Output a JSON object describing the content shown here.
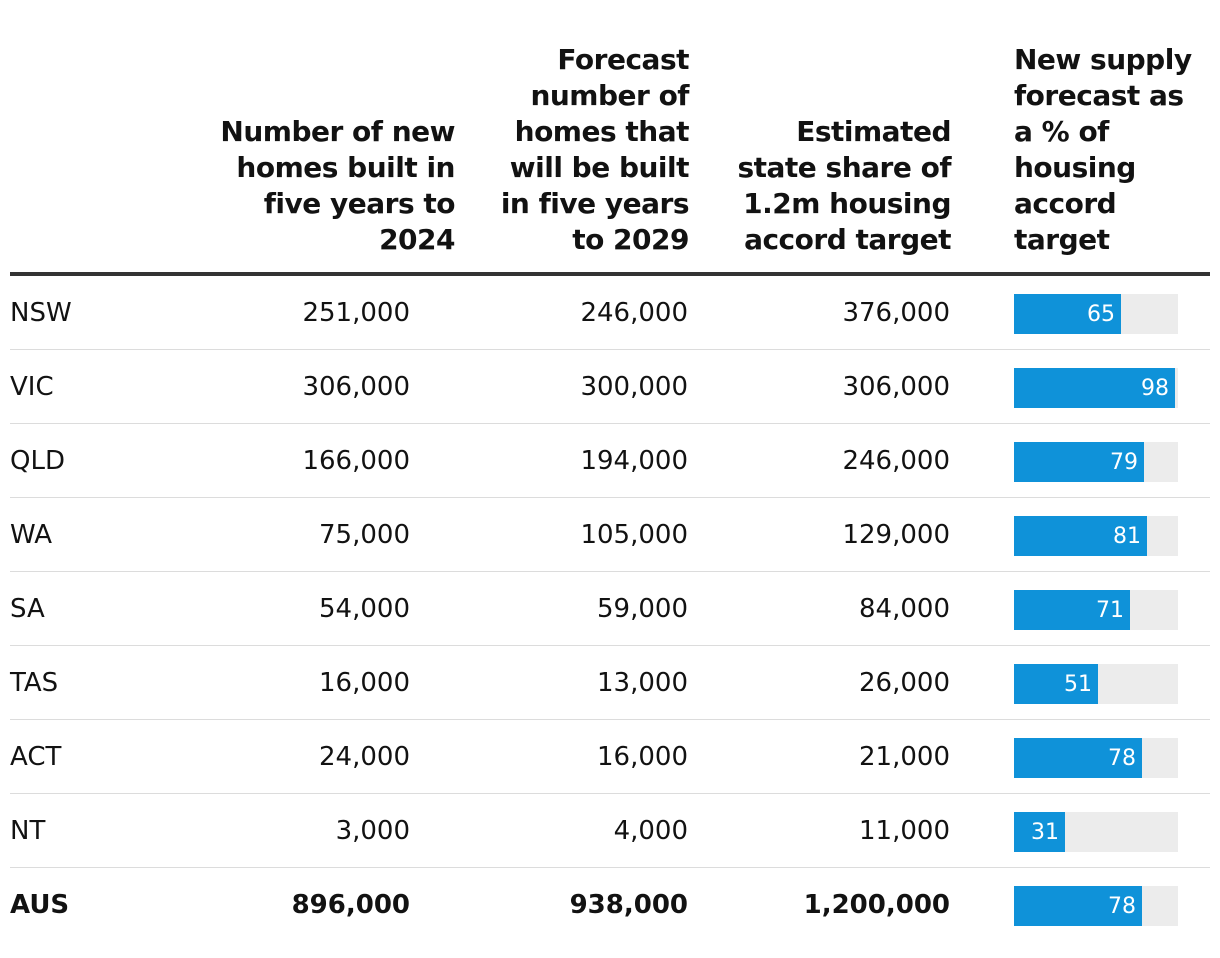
{
  "headers": {
    "col1": "Number of new\nhomes built in\nfive years to\n2024",
    "col2": "Forecast\nnumber of\nhomes that\nwill be built\nin five years\nto 2029",
    "col3": "Estimated\nstate share of\n1.2m housing\naccord target",
    "col4": "New supply\nforecast as\na % of\nhousing\naccord\ntarget"
  },
  "rows": [
    {
      "region": "NSW",
      "built_2024": "251,000",
      "forecast_2029": "246,000",
      "target_share": "376,000",
      "pct_label": "65"
    },
    {
      "region": "VIC",
      "built_2024": "306,000",
      "forecast_2029": "300,000",
      "target_share": "306,000",
      "pct_label": "98"
    },
    {
      "region": "QLD",
      "built_2024": "166,000",
      "forecast_2029": "194,000",
      "target_share": "246,000",
      "pct_label": "79"
    },
    {
      "region": "WA",
      "built_2024": "75,000",
      "forecast_2029": "105,000",
      "target_share": "129,000",
      "pct_label": "81"
    },
    {
      "region": "SA",
      "built_2024": "54,000",
      "forecast_2029": "59,000",
      "target_share": "84,000",
      "pct_label": "71"
    },
    {
      "region": "TAS",
      "built_2024": "16,000",
      "forecast_2029": "13,000",
      "target_share": "26,000",
      "pct_label": "51"
    },
    {
      "region": "ACT",
      "built_2024": "24,000",
      "forecast_2029": "16,000",
      "target_share": "21,000",
      "pct_label": "78"
    },
    {
      "region": "NT",
      "built_2024": "3,000",
      "forecast_2029": "4,000",
      "target_share": "11,000",
      "pct_label": "31"
    },
    {
      "region": "AUS",
      "built_2024": "896,000",
      "forecast_2029": "938,000",
      "target_share": "1,200,000",
      "pct_label": "78"
    }
  ],
  "colors": {
    "bar": "#0f92d9",
    "track": "#ececec",
    "rule": "#333333"
  },
  "chart_data": {
    "type": "table",
    "title": "",
    "columns": [
      "Number of new homes built in five years to 2024",
      "Forecast number of homes that will be built in five years to 2029",
      "Estimated state share of 1.2m housing accord target",
      "New supply forecast as a % of housing accord target"
    ],
    "categories": [
      "NSW",
      "VIC",
      "QLD",
      "WA",
      "SA",
      "TAS",
      "ACT",
      "NT",
      "AUS"
    ],
    "series": [
      {
        "name": "Number of new homes built in five years to 2024",
        "values": [
          251000,
          306000,
          166000,
          75000,
          54000,
          16000,
          24000,
          3000,
          896000
        ]
      },
      {
        "name": "Forecast number of homes that will be built in five years to 2029",
        "values": [
          246000,
          300000,
          194000,
          105000,
          59000,
          13000,
          16000,
          4000,
          938000
        ]
      },
      {
        "name": "Estimated state share of 1.2m housing accord target",
        "values": [
          376000,
          306000,
          246000,
          129000,
          84000,
          26000,
          21000,
          11000,
          1200000
        ]
      },
      {
        "name": "New supply forecast as a % of housing accord target",
        "values": [
          65,
          98,
          79,
          81,
          71,
          51,
          78,
          31,
          78
        ]
      }
    ],
    "ylim": [
      0,
      100
    ]
  }
}
